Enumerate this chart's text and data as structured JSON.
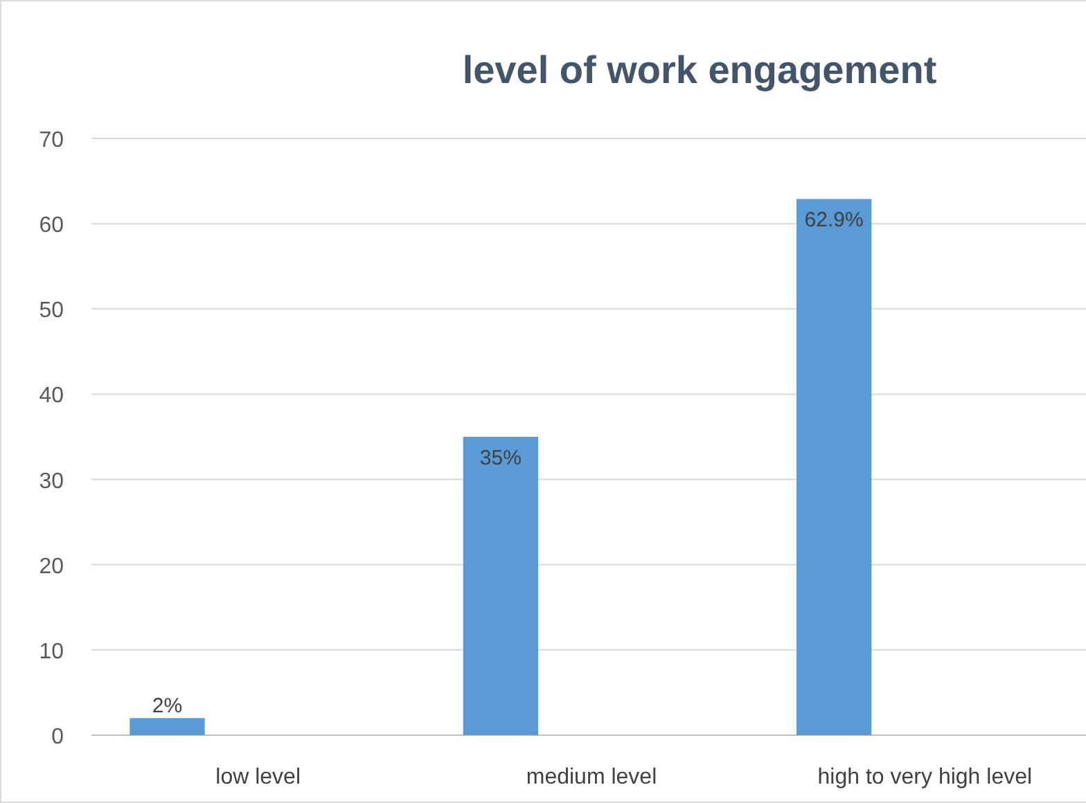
{
  "chart_data": {
    "type": "bar",
    "title": "level of work engagement",
    "categories": [
      "low level",
      "medium level",
      "high to very high level"
    ],
    "values": [
      2,
      35,
      62.9
    ],
    "value_labels": [
      "2%",
      "35%",
      "62.9%"
    ],
    "color": "#5b9bd5",
    "ylim": [
      0,
      70
    ],
    "yticks": [
      0,
      10,
      20,
      30,
      40,
      50,
      60,
      70
    ],
    "grid": "y"
  }
}
